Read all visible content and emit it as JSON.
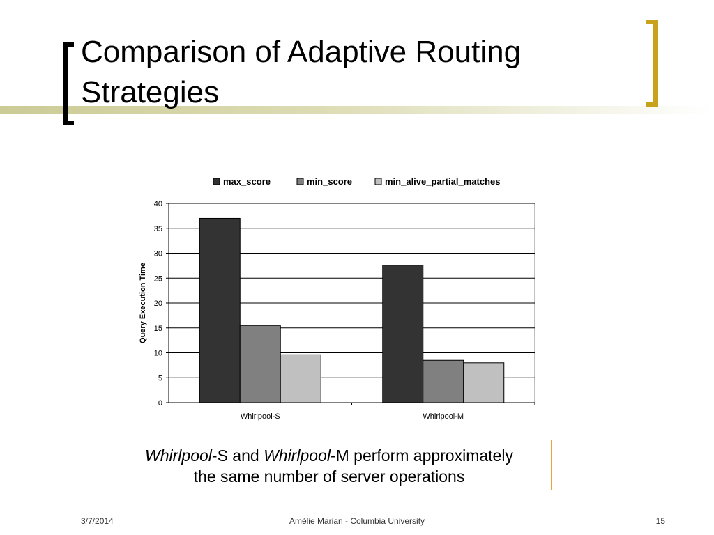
{
  "slide": {
    "title_line1": "Comparison of Adaptive Routing",
    "title_line2": "Strategies",
    "callout": {
      "part1_italic": "Whirlpool",
      "part1_rest": "-S and ",
      "part2_italic": "Whirlpool",
      "part2_rest": "-M perform approximately",
      "line2": "the same number of server operations"
    },
    "footer": {
      "date": "3/7/2014",
      "center": "Amélie Marian - Columbia University",
      "page": "15"
    },
    "colors": {
      "bracket_left": "#000000",
      "bracket_right": "#c9a21c",
      "callout_border": "#e0a838"
    }
  },
  "chart_data": {
    "type": "bar",
    "categories": [
      "Whirlpool-S",
      "Whirlpool-M"
    ],
    "series": [
      {
        "name": "max_score",
        "values": [
          37,
          27.6
        ],
        "color": "#333333"
      },
      {
        "name": "min_score",
        "values": [
          15.5,
          8.5
        ],
        "color": "#808080"
      },
      {
        "name": "min_alive_partial_matches",
        "values": [
          9.6,
          8
        ],
        "color": "#c0c0c0"
      }
    ],
    "ylabel": "Query Execution Time",
    "xlabel": "",
    "ylim": [
      0,
      40
    ],
    "yticks": [
      0,
      5,
      10,
      15,
      20,
      25,
      30,
      35,
      40
    ],
    "grid": true,
    "legend_position": "top"
  }
}
